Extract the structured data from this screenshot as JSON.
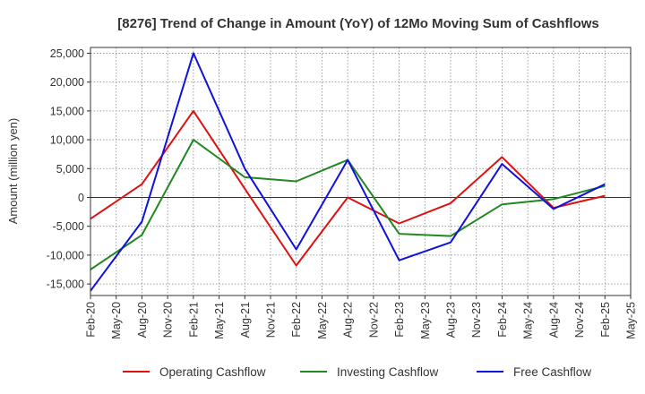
{
  "chart_data": {
    "type": "line",
    "title": "[8276]  Trend of Change in Amount (YoY) of 12Mo Moving Sum of Cashflows",
    "xlabel": "",
    "ylabel": "Amount (million yen)",
    "ylim": [
      -17000,
      26000
    ],
    "yticks": [
      25000,
      20000,
      15000,
      10000,
      5000,
      0,
      -5000,
      -10000,
      -15000
    ],
    "ytick_labels": [
      "25,000",
      "20,000",
      "15,000",
      "10,000",
      "5,000",
      "0",
      "-5,000",
      "-10,000",
      "-15,000"
    ],
    "categories": [
      "Feb-20",
      "May-20",
      "Aug-20",
      "Nov-20",
      "Feb-21",
      "May-21",
      "Aug-21",
      "Nov-21",
      "Feb-22",
      "May-22",
      "Aug-22",
      "Nov-22",
      "Feb-23",
      "May-23",
      "Aug-23",
      "Nov-23",
      "Feb-24",
      "May-24",
      "Aug-24",
      "Nov-24",
      "Feb-25",
      "May-25"
    ],
    "grid": true,
    "legend_position": "bottom",
    "series": [
      {
        "name": "Operating Cashflow",
        "color": "#dd1111",
        "values": [
          -3700,
          null,
          2300,
          null,
          15000,
          null,
          1500,
          null,
          -11800,
          null,
          0,
          null,
          -4500,
          null,
          -1000,
          null,
          7000,
          null,
          -1800,
          null,
          300,
          null
        ]
      },
      {
        "name": "Investing Cashflow",
        "color": "#228822",
        "values": [
          -12500,
          null,
          -6500,
          null,
          10000,
          null,
          3500,
          null,
          2800,
          null,
          6500,
          null,
          -6300,
          null,
          -6700,
          null,
          -1200,
          null,
          -300,
          null,
          2000,
          null
        ]
      },
      {
        "name": "Free Cashflow",
        "color": "#1111dd",
        "values": [
          -16200,
          null,
          -4200,
          null,
          25000,
          null,
          5000,
          null,
          -9000,
          null,
          6500,
          null,
          -10900,
          null,
          -7800,
          null,
          5800,
          null,
          -2000,
          null,
          2300,
          null
        ]
      }
    ]
  }
}
